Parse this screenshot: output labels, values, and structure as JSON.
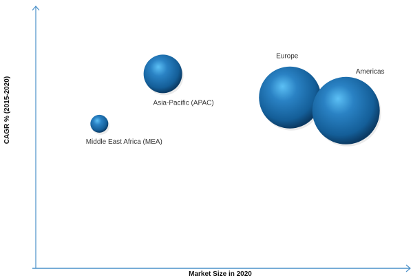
{
  "chart_data": {
    "type": "scatter",
    "subtype": "bubble",
    "title": "",
    "xlabel": "Market Size in 2020",
    "ylabel": "CAGR % (2015-2020)",
    "xlim": [
      0,
      100
    ],
    "ylim": [
      0,
      100
    ],
    "grid": false,
    "units_note": "relative (no tick values shown)",
    "bubble_color": "#1f6fae",
    "axis_color": "#4a90c8",
    "points": [
      {
        "name": "Middle East Africa (MEA)",
        "x": 17,
        "y": 55,
        "size": 13,
        "label_pos": "below"
      },
      {
        "name": "Asia-Pacific (APAC)",
        "x": 34,
        "y": 74,
        "size": 28,
        "label_pos": "below-right"
      },
      {
        "name": "Europe",
        "x": 68,
        "y": 65,
        "size": 45,
        "label_pos": "above"
      },
      {
        "name": "Americas",
        "x": 83,
        "y": 60,
        "size": 49,
        "label_pos": "above-right"
      }
    ]
  }
}
